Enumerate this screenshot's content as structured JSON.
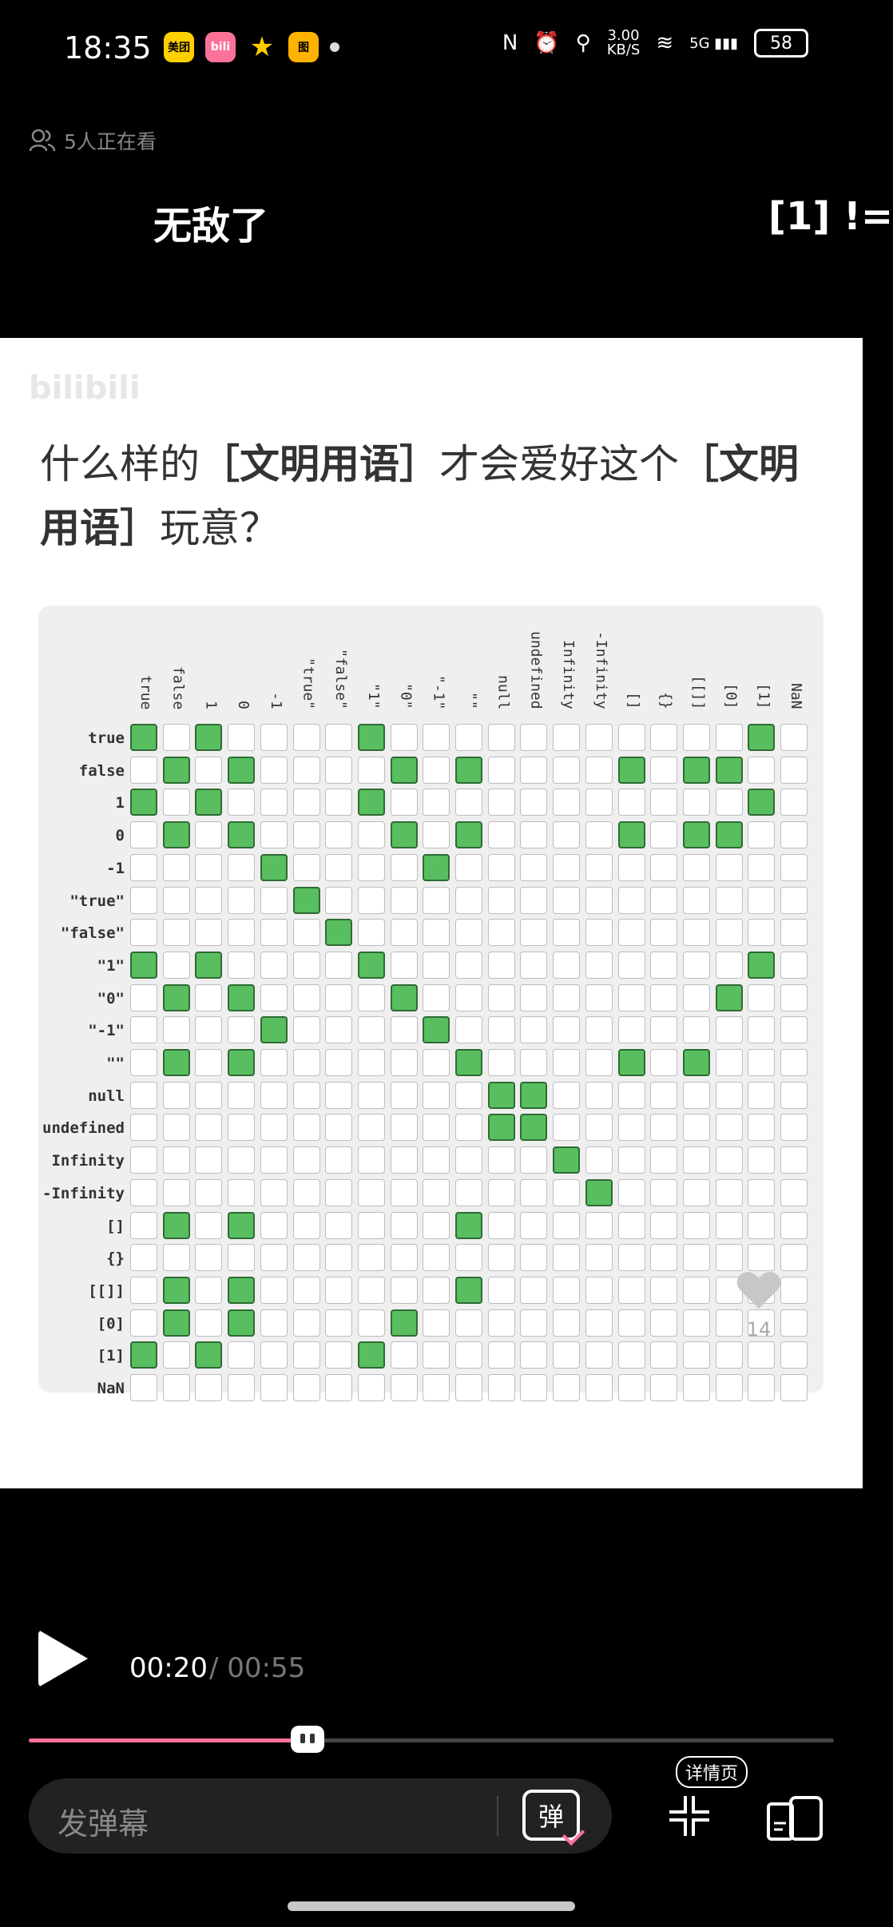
{
  "status_bar": {
    "time": "18:35",
    "app_icons": [
      {
        "name": "meituan-icon",
        "label": "美团",
        "color": "#ffd000"
      },
      {
        "name": "bilibili-app-icon",
        "label": "bili",
        "color": "#fb7299"
      },
      {
        "name": "star-app-icon",
        "label": "★",
        "color": "#ffcc00"
      },
      {
        "name": "deals-app-icon",
        "label": "图",
        "color": "#ffb300"
      }
    ],
    "net_speed_value": "3.00",
    "net_speed_unit": "KB/S",
    "signal": "5G",
    "battery": "58"
  },
  "video": {
    "viewers": "5人正在看",
    "danmaku": [
      "无敌了",
      "[1] !="
    ]
  },
  "content": {
    "watermark": "bilibili",
    "headline_parts": [
      "什么样的",
      "［文明用语］",
      "才会爱好这个",
      "［文明用语］",
      "玩意？"
    ],
    "matrix": {
      "labels": [
        "true",
        "false",
        "1",
        "0",
        "-1",
        "\"true\"",
        "\"false\"",
        "\"1\"",
        "\"0\"",
        "\"-1\"",
        "\"\"",
        "null",
        "undefined",
        "Infinity",
        "-Infinity",
        "[]",
        "{}",
        "[[]]",
        "[0]",
        "[1]",
        "NaN"
      ],
      "on_cells": [
        [
          0,
          2,
          7,
          19
        ],
        [
          1,
          3,
          8,
          10,
          15,
          17,
          18
        ],
        [
          0,
          2,
          7,
          19
        ],
        [
          1,
          3,
          8,
          10,
          15,
          17,
          18
        ],
        [
          4,
          9
        ],
        [
          5
        ],
        [
          6
        ],
        [
          0,
          2,
          7,
          19
        ],
        [
          1,
          3,
          8,
          18
        ],
        [
          4,
          9
        ],
        [
          1,
          3,
          10,
          15,
          17
        ],
        [
          11,
          12
        ],
        [
          11,
          12
        ],
        [
          13
        ],
        [
          14
        ],
        [
          1,
          3,
          10
        ],
        [],
        [
          1,
          3,
          10
        ],
        [
          1,
          3,
          8
        ],
        [
          0,
          2,
          7
        ],
        []
      ]
    },
    "like_count": "14"
  },
  "player": {
    "current_time": "00:20",
    "total_time": "/ 00:55",
    "progress": 0.36,
    "danmaku_placeholder": "发弹幕",
    "danmaku_toggle_label": "弹",
    "detail_tip": "详情页"
  }
}
